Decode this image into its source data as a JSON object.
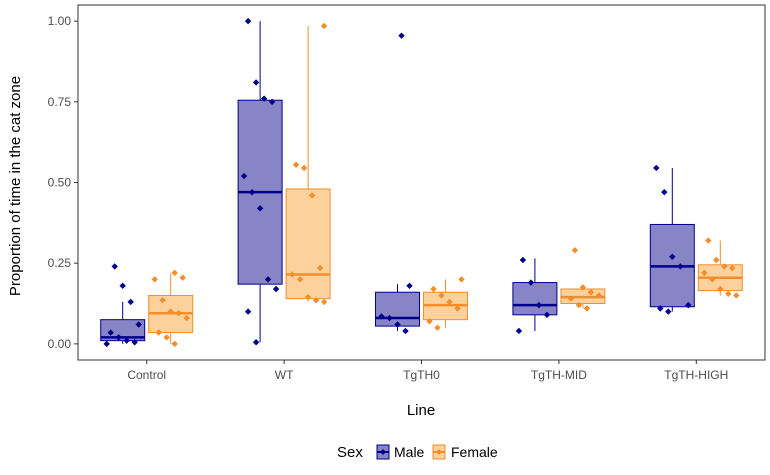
{
  "chart_data": {
    "type": "boxplot",
    "xlabel": "Line",
    "ylabel": "Proportion of time in the cat zone",
    "categories": [
      "Control",
      "WT",
      "TgTH0",
      "TgTH-MID",
      "TgTH-HIGH"
    ],
    "ylim": [
      -0.05,
      1.05
    ],
    "yticks": [
      0.0,
      0.25,
      0.5,
      0.75,
      1.0
    ],
    "ytick_labels": [
      "0.00",
      "0.25",
      "0.50",
      "0.75",
      "1.00"
    ],
    "grid": false,
    "legend": {
      "title": "Sex",
      "placement": "bottom",
      "entries": [
        "Male",
        "Female"
      ]
    },
    "series": [
      {
        "name": "Male",
        "color": "#00008B",
        "fill": "#8885C7",
        "boxes": [
          {
            "min": 0.0,
            "q1": 0.01,
            "median": 0.02,
            "q3": 0.075,
            "max": 0.13
          },
          {
            "min": 0.005,
            "q1": 0.185,
            "median": 0.47,
            "q3": 0.755,
            "max": 1.0
          },
          {
            "min": 0.04,
            "q1": 0.055,
            "median": 0.08,
            "q3": 0.16,
            "max": 0.185
          },
          {
            "min": 0.04,
            "q1": 0.09,
            "median": 0.12,
            "q3": 0.19,
            "max": 0.265
          },
          {
            "min": 0.1,
            "q1": 0.115,
            "median": 0.24,
            "q3": 0.37,
            "max": 0.545
          }
        ],
        "points": [
          [
            0.0,
            0.005,
            0.01,
            0.02,
            0.035,
            0.06,
            0.13,
            0.18,
            0.24
          ],
          [
            0.005,
            0.1,
            0.17,
            0.2,
            0.42,
            0.47,
            0.52,
            0.75,
            0.76,
            0.81,
            1.0
          ],
          [
            0.04,
            0.06,
            0.08,
            0.085,
            0.18,
            0.955
          ],
          [
            0.04,
            0.09,
            0.12,
            0.19,
            0.26
          ],
          [
            0.1,
            0.11,
            0.12,
            0.24,
            0.27,
            0.47,
            0.545
          ]
        ]
      },
      {
        "name": "Female",
        "color": "#F28E2B",
        "fill": "#FDD19C",
        "boxes": [
          {
            "min": 0.0,
            "q1": 0.035,
            "median": 0.095,
            "q3": 0.15,
            "max": 0.22
          },
          {
            "min": 0.13,
            "q1": 0.14,
            "median": 0.215,
            "q3": 0.48,
            "max": 0.985
          },
          {
            "min": 0.05,
            "q1": 0.075,
            "median": 0.12,
            "q3": 0.16,
            "max": 0.2
          },
          {
            "min": 0.11,
            "q1": 0.125,
            "median": 0.145,
            "q3": 0.17,
            "max": 0.175
          },
          {
            "min": 0.15,
            "q1": 0.165,
            "median": 0.205,
            "q3": 0.245,
            "max": 0.32
          }
        ],
        "points": [
          [
            0.0,
            0.02,
            0.035,
            0.08,
            0.095,
            0.1,
            0.135,
            0.2,
            0.205,
            0.22
          ],
          [
            0.13,
            0.135,
            0.145,
            0.2,
            0.215,
            0.235,
            0.46,
            0.545,
            0.555,
            0.985
          ],
          [
            0.05,
            0.07,
            0.11,
            0.13,
            0.15,
            0.17,
            0.2
          ],
          [
            0.11,
            0.12,
            0.14,
            0.15,
            0.16,
            0.175,
            0.29
          ],
          [
            0.15,
            0.155,
            0.17,
            0.2,
            0.22,
            0.235,
            0.24,
            0.26,
            0.32
          ]
        ]
      }
    ]
  }
}
